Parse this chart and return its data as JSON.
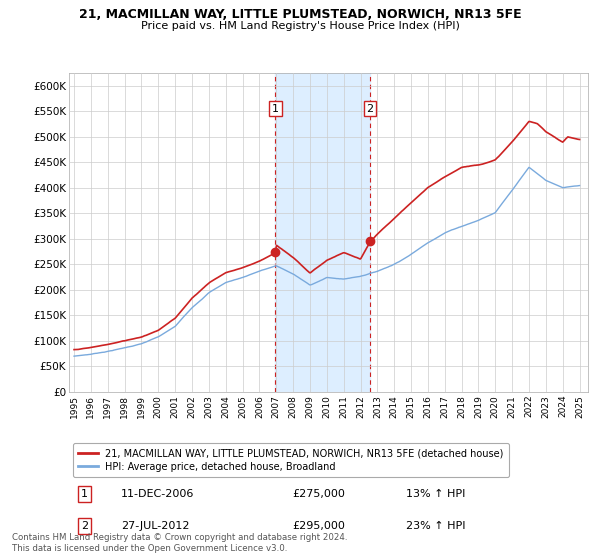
{
  "title_line1": "21, MACMILLAN WAY, LITTLE PLUMSTEAD, NORWICH, NR13 5FE",
  "title_line2": "Price paid vs. HM Land Registry's House Price Index (HPI)",
  "ylabel_ticks": [
    "£0",
    "£50K",
    "£100K",
    "£150K",
    "£200K",
    "£250K",
    "£300K",
    "£350K",
    "£400K",
    "£450K",
    "£500K",
    "£550K",
    "£600K"
  ],
  "ytick_values": [
    0,
    50000,
    100000,
    150000,
    200000,
    250000,
    300000,
    350000,
    400000,
    450000,
    500000,
    550000,
    600000
  ],
  "ylim": [
    0,
    625000
  ],
  "xlim_start": 1994.7,
  "xlim_end": 2025.5,
  "xtick_years": [
    1995,
    1996,
    1997,
    1998,
    1999,
    2000,
    2001,
    2002,
    2003,
    2004,
    2005,
    2006,
    2007,
    2008,
    2009,
    2010,
    2011,
    2012,
    2013,
    2014,
    2015,
    2016,
    2017,
    2018,
    2019,
    2020,
    2021,
    2022,
    2023,
    2024,
    2025
  ],
  "hpi_color": "#7aaadd",
  "price_color": "#cc2222",
  "highlight_fill": "#ddeeff",
  "purchase1_year": 2006.94,
  "purchase1_price": 275000,
  "purchase2_year": 2012.57,
  "purchase2_price": 295000,
  "legend_label1": "21, MACMILLAN WAY, LITTLE PLUMSTEAD, NORWICH, NR13 5FE (detached house)",
  "legend_label2": "HPI: Average price, detached house, Broadland",
  "annotation1_date": "11-DEC-2006",
  "annotation1_price": "£275,000",
  "annotation1_hpi": "13% ↑ HPI",
  "annotation2_date": "27-JUL-2012",
  "annotation2_price": "£295,000",
  "annotation2_hpi": "23% ↑ HPI",
  "footer": "Contains HM Land Registry data © Crown copyright and database right 2024.\nThis data is licensed under the Open Government Licence v3.0.",
  "background_color": "#ffffff",
  "grid_color": "#cccccc",
  "hpi_anchors": [
    [
      1995,
      70000
    ],
    [
      1996,
      74000
    ],
    [
      1997,
      80000
    ],
    [
      1998,
      87000
    ],
    [
      1999,
      95000
    ],
    [
      2000,
      108000
    ],
    [
      2001,
      128000
    ],
    [
      2002,
      165000
    ],
    [
      2003,
      195000
    ],
    [
      2004,
      215000
    ],
    [
      2005,
      225000
    ],
    [
      2006,
      238000
    ],
    [
      2007,
      248000
    ],
    [
      2008,
      232000
    ],
    [
      2009,
      210000
    ],
    [
      2010,
      225000
    ],
    [
      2011,
      222000
    ],
    [
      2012,
      228000
    ],
    [
      2013,
      238000
    ],
    [
      2014,
      252000
    ],
    [
      2015,
      272000
    ],
    [
      2016,
      295000
    ],
    [
      2017,
      315000
    ],
    [
      2018,
      328000
    ],
    [
      2019,
      340000
    ],
    [
      2020,
      355000
    ],
    [
      2021,
      400000
    ],
    [
      2022,
      445000
    ],
    [
      2023,
      420000
    ],
    [
      2024,
      405000
    ],
    [
      2025,
      408000
    ]
  ],
  "price_anchors": [
    [
      1995,
      83000
    ],
    [
      1996,
      87000
    ],
    [
      1997,
      93000
    ],
    [
      1998,
      100000
    ],
    [
      1999,
      108000
    ],
    [
      2000,
      122000
    ],
    [
      2001,
      145000
    ],
    [
      2002,
      185000
    ],
    [
      2003,
      215000
    ],
    [
      2004,
      235000
    ],
    [
      2005,
      245000
    ],
    [
      2006,
      258000
    ],
    [
      2006.94,
      275000
    ],
    [
      2007,
      290000
    ],
    [
      2008,
      265000
    ],
    [
      2009,
      235000
    ],
    [
      2010,
      260000
    ],
    [
      2011,
      275000
    ],
    [
      2012,
      262000
    ],
    [
      2012.57,
      295000
    ],
    [
      2013,
      310000
    ],
    [
      2014,
      340000
    ],
    [
      2015,
      370000
    ],
    [
      2016,
      400000
    ],
    [
      2017,
      420000
    ],
    [
      2018,
      440000
    ],
    [
      2019,
      445000
    ],
    [
      2020,
      455000
    ],
    [
      2021,
      490000
    ],
    [
      2022,
      530000
    ],
    [
      2022.5,
      525000
    ],
    [
      2023,
      510000
    ],
    [
      2023.5,
      500000
    ],
    [
      2024,
      490000
    ],
    [
      2024.3,
      500000
    ],
    [
      2025,
      495000
    ]
  ]
}
